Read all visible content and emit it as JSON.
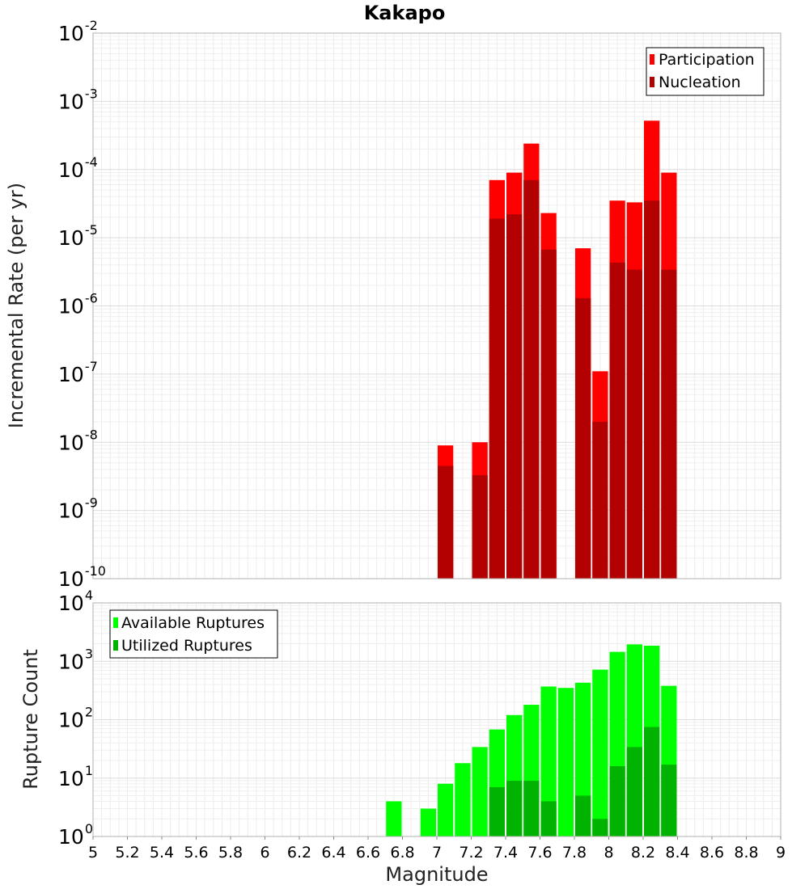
{
  "chart_data": [
    {
      "type": "bar",
      "title": "Kakapo",
      "ylabel": "Incremental Rate (per yr)",
      "xlabel": "",
      "yscale": "log",
      "ylim": [
        1e-10,
        0.01
      ],
      "xlim": [
        5,
        9
      ],
      "y_ticks": [
        {
          "base": "10",
          "exp": "-10",
          "value": 1e-10
        },
        {
          "base": "10",
          "exp": "-9",
          "value": 1e-09
        },
        {
          "base": "10",
          "exp": "-8",
          "value": 1e-08
        },
        {
          "base": "10",
          "exp": "-7",
          "value": 1e-07
        },
        {
          "base": "10",
          "exp": "-6",
          "value": 1e-06
        },
        {
          "base": "10",
          "exp": "-5",
          "value": 1e-05
        },
        {
          "base": "10",
          "exp": "-4",
          "value": 0.0001
        },
        {
          "base": "10",
          "exp": "-3",
          "value": 0.001
        },
        {
          "base": "10",
          "exp": "-2",
          "value": 0.01
        }
      ],
      "legend_position": "top-right",
      "grid": true,
      "series": [
        {
          "name": "Participation",
          "color": "#ff0000",
          "x": [
            7.05,
            7.25,
            7.35,
            7.45,
            7.55,
            7.65,
            7.85,
            7.95,
            8.05,
            8.15,
            8.25,
            8.35
          ],
          "values": [
            9e-09,
            1e-08,
            7e-05,
            9e-05,
            0.00024,
            2.3e-05,
            7e-06,
            1.1e-07,
            3.5e-05,
            3.3e-05,
            0.00052,
            9e-05
          ]
        },
        {
          "name": "Nucleation",
          "color": "#b30000",
          "x": [
            7.05,
            7.25,
            7.35,
            7.45,
            7.55,
            7.65,
            7.85,
            7.95,
            8.05,
            8.15,
            8.25,
            8.35
          ],
          "values": [
            4.5e-09,
            3.3e-09,
            1.9e-05,
            2.2e-05,
            7e-05,
            6.7e-06,
            1.3e-06,
            2e-08,
            4.3e-06,
            3.4e-06,
            3.5e-05,
            3.4e-06
          ]
        }
      ]
    },
    {
      "type": "bar",
      "title": "",
      "ylabel": "Rupture Count",
      "xlabel": "Magnitude",
      "yscale": "log",
      "ylim": [
        1,
        10000.0
      ],
      "xlim": [
        5,
        9
      ],
      "x_ticks": [
        "5",
        "5.2",
        "5.4",
        "5.6",
        "5.8",
        "6",
        "6.2",
        "6.4",
        "6.6",
        "6.8",
        "7",
        "7.2",
        "7.4",
        "7.6",
        "7.8",
        "8",
        "8.2",
        "8.4",
        "8.6",
        "8.8",
        "9"
      ],
      "y_ticks": [
        {
          "base": "10",
          "exp": "0",
          "value": 1
        },
        {
          "base": "10",
          "exp": "1",
          "value": 10
        },
        {
          "base": "10",
          "exp": "2",
          "value": 100
        },
        {
          "base": "10",
          "exp": "3",
          "value": 1000
        },
        {
          "base": "10",
          "exp": "4",
          "value": 10000
        }
      ],
      "legend_position": "top-left",
      "grid": true,
      "series": [
        {
          "name": "Available Ruptures",
          "color": "#00ff00",
          "x": [
            6.75,
            6.85,
            6.95,
            7.05,
            7.15,
            7.25,
            7.35,
            7.45,
            7.55,
            7.65,
            7.75,
            7.85,
            7.95,
            8.05,
            8.15,
            8.25,
            8.35
          ],
          "values": [
            4,
            1,
            3,
            8,
            18,
            34,
            68,
            120,
            180,
            370,
            350,
            430,
            720,
            1450,
            1950,
            1850,
            380
          ]
        },
        {
          "name": "Utilized Ruptures",
          "color": "#00b300",
          "x": [
            7.05,
            7.25,
            7.35,
            7.45,
            7.55,
            7.65,
            7.85,
            7.95,
            8.05,
            8.15,
            8.25,
            8.35
          ],
          "values": [
            1,
            1,
            7,
            9,
            9,
            4,
            5,
            2,
            16,
            34,
            75,
            17
          ]
        }
      ]
    }
  ]
}
